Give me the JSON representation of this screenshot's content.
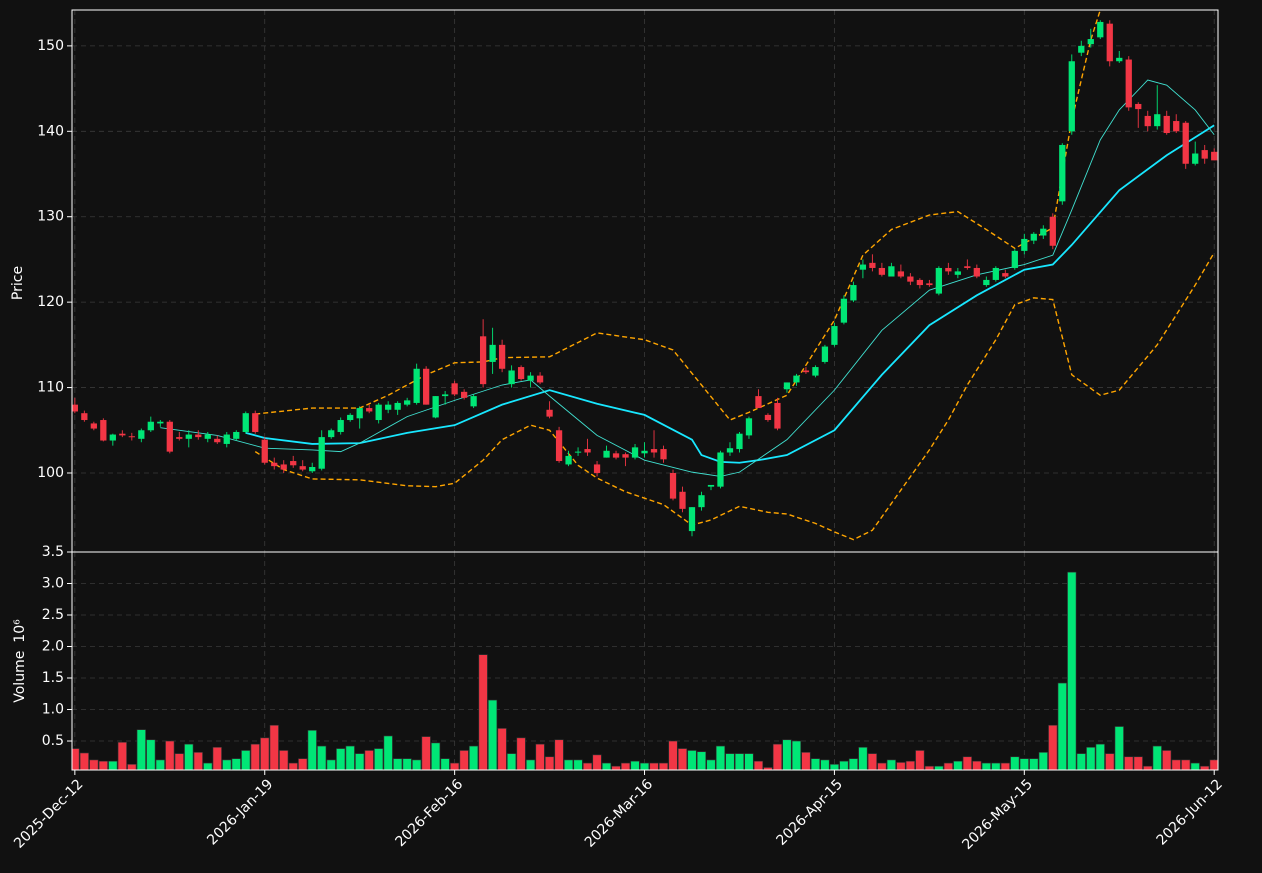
{
  "chart_data": {
    "type": "candlestick",
    "categories": [
      "2025-Dec-12",
      null,
      null,
      null,
      null,
      null,
      null,
      null,
      null,
      null,
      null,
      null,
      null,
      null,
      null,
      null,
      null,
      null,
      null,
      null,
      "2026-Jan-19",
      null,
      null,
      null,
      null,
      null,
      null,
      null,
      null,
      null,
      null,
      null,
      null,
      null,
      null,
      null,
      null,
      null,
      null,
      null,
      "2026-Feb-16",
      null,
      null,
      null,
      null,
      null,
      null,
      null,
      null,
      null,
      null,
      null,
      null,
      null,
      null,
      null,
      null,
      null,
      null,
      null,
      "2026-Mar-16",
      null,
      null,
      null,
      null,
      null,
      null,
      null,
      null,
      null,
      null,
      null,
      null,
      null,
      null,
      null,
      null,
      null,
      null,
      null,
      "2026-Apr-15",
      null,
      null,
      null,
      null,
      null,
      null,
      null,
      null,
      null,
      null,
      null,
      null,
      null,
      null,
      null,
      null,
      null,
      null,
      null,
      "2026-May-15",
      null,
      null,
      null,
      null,
      null,
      null,
      null,
      null,
      null,
      null,
      null,
      null,
      null,
      null,
      null,
      null,
      null,
      null,
      null,
      "2026-Jun-12"
    ],
    "open": [
      108.0,
      107.0,
      105.8,
      106.2,
      103.8,
      104.6,
      104.3,
      104.0,
      105.0,
      105.8,
      106.0,
      104.2,
      104.0,
      104.5,
      104.0,
      104.0,
      103.4,
      104.0,
      104.8,
      107.0,
      103.9,
      101.2,
      101.0,
      101.4,
      100.8,
      100.2,
      100.5,
      104.2,
      104.8,
      106.2,
      106.4,
      107.6,
      106.2,
      107.4,
      107.4,
      108.0,
      108.2,
      112.2,
      106.5,
      109.0,
      110.5,
      109.5,
      107.8,
      116.0,
      113.0,
      115.0,
      110.4,
      112.4,
      110.8,
      111.4,
      107.4,
      105.0,
      101.0,
      102.4,
      102.8,
      101.0,
      101.8,
      102.3,
      102.2,
      101.8,
      102.3,
      102.8,
      102.8,
      100.0,
      97.8,
      93.2,
      96.0,
      98.4,
      98.4,
      102.4,
      102.8,
      104.4,
      109.0,
      106.8,
      108.2,
      109.8,
      110.6,
      112.0,
      111.4,
      113.0,
      115.0,
      117.6,
      120.2,
      123.8,
      124.6,
      124.0,
      123.0,
      123.6,
      123.0,
      122.6,
      122.2,
      121.0,
      124.0,
      123.2,
      124.2,
      124.0,
      122.0,
      122.6,
      123.4,
      124.0,
      126.0,
      127.2,
      127.8,
      130.0,
      131.8,
      140.0,
      149.2,
      150.2,
      151.0,
      152.6,
      148.2,
      148.4,
      143.2,
      141.8,
      140.6,
      141.8,
      141.2,
      141.0,
      136.2,
      137.8,
      137.6
    ],
    "high": [
      108.8,
      107.3,
      106.0,
      106.4,
      104.6,
      105.0,
      104.7,
      105.2,
      106.6,
      106.2,
      106.2,
      104.8,
      105.0,
      105.0,
      104.8,
      104.4,
      104.8,
      105.0,
      107.2,
      107.3,
      104.2,
      101.8,
      101.5,
      102.0,
      101.5,
      101.2,
      105.0,
      105.2,
      106.5,
      107.0,
      107.8,
      108.0,
      108.2,
      108.4,
      108.4,
      108.8,
      112.8,
      112.5,
      109.0,
      109.6,
      110.8,
      109.8,
      109.2,
      118.0,
      117.0,
      115.6,
      112.6,
      112.6,
      111.8,
      111.8,
      108.4,
      105.4,
      102.6,
      103.0,
      104.0,
      101.4,
      103.2,
      102.6,
      102.4,
      103.4,
      103.6,
      105.0,
      103.2,
      100.4,
      98.4,
      96.0,
      97.8,
      98.6,
      102.6,
      103.6,
      104.8,
      106.6,
      109.8,
      107.0,
      108.8,
      110.6,
      111.6,
      112.4,
      112.6,
      115.0,
      117.6,
      120.8,
      122.4,
      125.0,
      125.6,
      124.6,
      124.6,
      124.4,
      123.4,
      122.8,
      122.6,
      124.2,
      124.6,
      124.0,
      125.0,
      124.4,
      123.0,
      124.2,
      123.8,
      126.2,
      128.0,
      128.2,
      129.0,
      130.4,
      138.6,
      149.0,
      150.6,
      152.0,
      153.0,
      153.0,
      149.4,
      148.8,
      143.4,
      142.4,
      145.4,
      142.4,
      142.0,
      141.2,
      138.8,
      138.4,
      138.0
    ],
    "low": [
      107.0,
      106.0,
      105.0,
      103.7,
      103.2,
      104.2,
      103.8,
      103.6,
      104.8,
      105.4,
      102.3,
      103.8,
      103.0,
      103.9,
      103.6,
      103.4,
      103.0,
      103.8,
      104.6,
      104.6,
      101.0,
      100.4,
      100.0,
      100.6,
      100.2,
      100.0,
      100.3,
      104.0,
      104.5,
      106.0,
      105.2,
      107.0,
      105.8,
      107.0,
      106.8,
      107.8,
      108.0,
      108.0,
      106.4,
      108.0,
      109.0,
      108.6,
      107.6,
      110.0,
      111.6,
      111.8,
      110.0,
      110.8,
      110.0,
      110.4,
      106.4,
      101.2,
      100.8,
      102.0,
      102.0,
      99.6,
      101.8,
      101.6,
      100.8,
      101.6,
      101.8,
      101.8,
      101.2,
      96.8,
      95.4,
      92.6,
      95.6,
      98.0,
      98.2,
      102.0,
      102.4,
      104.0,
      108.0,
      106.0,
      105.0,
      109.4,
      110.2,
      111.6,
      111.2,
      112.8,
      114.8,
      117.4,
      120.0,
      122.8,
      123.6,
      123.0,
      123.0,
      122.8,
      122.0,
      121.6,
      121.8,
      120.8,
      123.2,
      122.8,
      123.8,
      122.8,
      121.8,
      122.4,
      122.8,
      123.8,
      125.6,
      126.8,
      127.4,
      126.2,
      131.4,
      139.6,
      148.8,
      149.8,
      150.8,
      147.6,
      148.0,
      142.4,
      140.4,
      140.0,
      140.2,
      139.6,
      139.8,
      135.6,
      136.0,
      136.2,
      136.6
    ],
    "close": [
      107.2,
      106.2,
      105.2,
      103.8,
      104.5,
      104.4,
      104.2,
      105.0,
      106.0,
      106.0,
      102.5,
      104.0,
      104.5,
      104.2,
      104.5,
      103.6,
      104.5,
      104.8,
      107.0,
      104.8,
      101.2,
      100.8,
      100.4,
      100.9,
      100.4,
      100.7,
      104.2,
      105.0,
      106.2,
      106.8,
      107.6,
      107.2,
      108.0,
      108.0,
      108.2,
      108.5,
      112.2,
      108.0,
      109.0,
      109.2,
      109.2,
      108.8,
      109.0,
      110.4,
      115.0,
      112.2,
      112.0,
      111.0,
      111.4,
      110.6,
      106.6,
      101.4,
      102.0,
      102.5,
      102.4,
      100.0,
      102.6,
      101.8,
      101.8,
      103.0,
      102.6,
      102.4,
      101.6,
      97.0,
      95.8,
      96.0,
      97.4,
      98.6,
      102.4,
      102.9,
      104.6,
      106.4,
      107.6,
      106.2,
      105.2,
      110.6,
      111.4,
      111.8,
      112.4,
      114.8,
      117.2,
      120.4,
      122.0,
      124.4,
      124.0,
      123.2,
      124.2,
      123.0,
      122.4,
      122.0,
      122.0,
      124.0,
      123.6,
      123.6,
      124.0,
      123.0,
      122.6,
      124.0,
      123.0,
      126.0,
      127.4,
      128.0,
      128.6,
      126.6,
      138.4,
      148.2,
      150.0,
      150.8,
      152.8,
      148.2,
      148.6,
      142.8,
      142.6,
      140.6,
      142.0,
      139.8,
      140.0,
      136.2,
      137.4,
      136.8,
      136.6
    ],
    "up_color": "#00e676",
    "down_color": "#f23645",
    "overlays": [
      {
        "color": "#18e7ff",
        "style": "solid",
        "linewidth": 1.8,
        "x": [
          18,
          20,
          25,
          30,
          35,
          40,
          45,
          50,
          55,
          60,
          65,
          66,
          68,
          70,
          72,
          75,
          80,
          85,
          90,
          95,
          100,
          103,
          105,
          110,
          115,
          120
        ],
        "values": [
          104.7,
          104.1,
          103.4,
          103.5,
          104.7,
          105.6,
          108.0,
          109.7,
          108.1,
          106.8,
          103.9,
          102.1,
          101.3,
          101.2,
          101.5,
          102.1,
          105.0,
          111.5,
          117.3,
          120.8,
          123.8,
          124.4,
          126.7,
          133.1,
          137.2,
          140.7
        ]
      },
      {
        "color": "#40e0d0",
        "style": "solid",
        "linewidth": 0.9,
        "x": [
          9,
          15,
          20,
          25,
          28,
          30,
          35,
          40,
          45,
          48,
          50,
          55,
          60,
          65,
          68,
          70,
          75,
          80,
          85,
          90,
          95,
          100,
          103,
          105,
          108,
          110,
          113,
          115,
          118,
          120
        ],
        "values": [
          105.3,
          104.4,
          102.9,
          102.7,
          102.5,
          103.5,
          106.6,
          108.5,
          110.3,
          110.9,
          109.0,
          104.4,
          101.5,
          100.1,
          99.6,
          100.1,
          103.9,
          109.7,
          116.7,
          121.4,
          123.2,
          124.4,
          125.5,
          130.8,
          139.0,
          142.5,
          146.0,
          145.4,
          142.5,
          139.6
        ]
      },
      {
        "color": "#ffa500",
        "style": "dashed",
        "linewidth": 1.4,
        "x": [
          19,
          25,
          30,
          33,
          37,
          40,
          43,
          45,
          50,
          55,
          60,
          63,
          66,
          69,
          71,
          75,
          80,
          83,
          86,
          90,
          93,
          96,
          99,
          101,
          103,
          105,
          107,
          108
        ],
        "values": [
          106.9,
          107.6,
          107.6,
          109.1,
          111.5,
          112.9,
          113.0,
          113.5,
          113.6,
          116.4,
          115.6,
          114.4,
          110.3,
          106.2,
          107.1,
          109.1,
          117.9,
          125.5,
          128.5,
          130.2,
          130.6,
          128.5,
          126.3,
          127.5,
          128.7,
          141.3,
          150.7,
          154.2
        ]
      },
      {
        "color": "#ffa500",
        "style": "dashed",
        "linewidth": 1.4,
        "x": [
          19,
          22,
          25,
          30,
          35,
          38,
          40,
          43,
          45,
          48,
          50,
          53,
          55,
          58,
          62,
          65,
          67,
          70,
          73,
          75,
          78,
          80,
          82,
          84,
          87,
          90,
          92,
          94,
          97,
          99,
          101,
          103,
          105,
          108,
          110,
          114,
          118,
          120
        ],
        "values": [
          102.5,
          100.4,
          99.3,
          99.2,
          98.5,
          98.4,
          98.8,
          101.5,
          103.9,
          105.6,
          105.0,
          100.9,
          99.4,
          97.8,
          96.3,
          93.9,
          94.5,
          96.1,
          95.4,
          95.2,
          94.1,
          93.1,
          92.2,
          93.3,
          98.0,
          102.7,
          106.2,
          110.3,
          115.6,
          119.7,
          120.5,
          120.3,
          111.5,
          109.1,
          109.7,
          115.0,
          122.0,
          125.8
        ]
      }
    ],
    "xlim": [
      -0.3,
      120.4
    ],
    "ylabel": "Price",
    "ylim": [
      90.75,
      154.2
    ],
    "yticks": [
      100,
      110,
      120,
      130,
      140,
      150
    ],
    "volume": [
      0.38,
      0.31,
      0.2,
      0.18,
      0.18,
      0.48,
      0.13,
      0.68,
      0.52,
      0.2,
      0.5,
      0.3,
      0.45,
      0.32,
      0.15,
      0.4,
      0.2,
      0.22,
      0.35,
      0.45,
      0.55,
      0.75,
      0.35,
      0.15,
      0.22,
      0.67,
      0.42,
      0.2,
      0.38,
      0.42,
      0.3,
      0.35,
      0.38,
      0.58,
      0.22,
      0.22,
      0.2,
      0.57,
      0.47,
      0.22,
      0.15,
      0.35,
      0.42,
      1.87,
      1.15,
      0.7,
      0.3,
      0.55,
      0.2,
      0.45,
      0.25,
      0.52,
      0.2,
      0.2,
      0.15,
      0.28,
      0.15,
      0.1,
      0.15,
      0.18,
      0.15,
      0.15,
      0.15,
      0.5,
      0.38,
      0.35,
      0.33,
      0.2,
      0.42,
      0.3,
      0.3,
      0.3,
      0.18,
      0.08,
      0.45,
      0.52,
      0.5,
      0.32,
      0.22,
      0.2,
      0.13,
      0.18,
      0.22,
      0.4,
      0.3,
      0.15,
      0.2,
      0.16,
      0.18,
      0.35,
      0.1,
      0.1,
      0.15,
      0.18,
      0.25,
      0.18,
      0.15,
      0.15,
      0.15,
      0.25,
      0.22,
      0.22,
      0.32,
      0.75,
      1.42,
      3.18,
      0.3,
      0.4,
      0.45,
      0.3,
      0.73,
      0.25,
      0.25,
      0.1,
      0.42,
      0.35,
      0.2,
      0.2,
      0.15,
      0.1,
      0.2
    ],
    "volume_ylabel": "Volume",
    "volume_scale_label": "10⁶",
    "volume_ylim": [
      0.04,
      3.5
    ],
    "volume_yticks": [
      0.5,
      {
        "value": 1,
        "label": "1.0"
      },
      1.5,
      {
        "value": 2,
        "label": "2.0"
      },
      2.5,
      {
        "value": 3,
        "label": "3.0"
      },
      3.5
    ],
    "grid": true
  }
}
